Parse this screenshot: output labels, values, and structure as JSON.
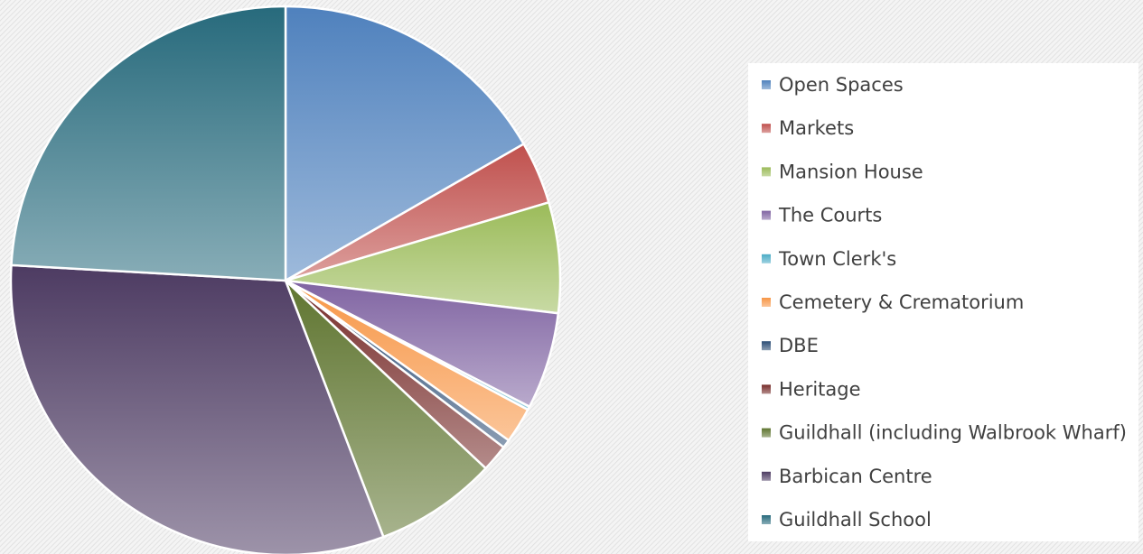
{
  "chart_data": {
    "type": "pie",
    "categories": [
      "Open Spaces",
      "Markets",
      "Mansion House",
      "The Courts",
      "Town Clerk's",
      "Cemetery & Crematorium",
      "DBE",
      "Heritage",
      "Guildhall (including Walbrook Wharf)",
      "Barbican Centre",
      "Guildhall School"
    ],
    "values": [
      16.7,
      3.7,
      6.5,
      5.7,
      0.2,
      2.1,
      0.5,
      1.6,
      7.2,
      31.7,
      24.1
    ],
    "colors": [
      "#4f81bd",
      "#c0504d",
      "#9bbb59",
      "#8064a2",
      "#4bacc6",
      "#f79646",
      "#2c4d75",
      "#772c2a",
      "#5f7530",
      "#4d3b62",
      "#276a7c"
    ],
    "legend": "right"
  }
}
